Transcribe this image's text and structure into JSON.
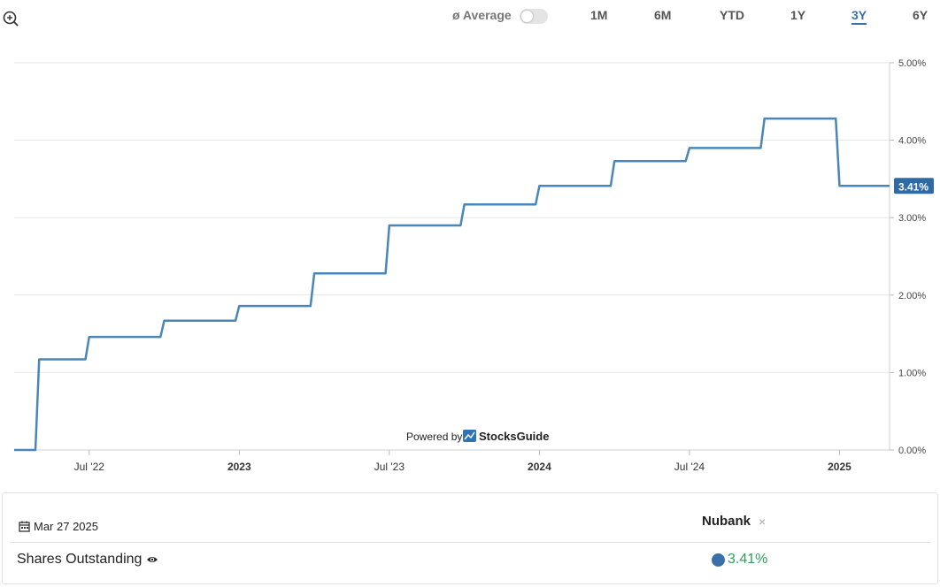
{
  "toolbar": {
    "average_label": "ø Average",
    "average_enabled": false,
    "ranges": [
      "1M",
      "6M",
      "YTD",
      "1Y",
      "3Y",
      "6Y"
    ],
    "active_range": "3Y"
  },
  "chart_data": {
    "type": "line",
    "line_style": "step",
    "color": "#4a86b8",
    "x": [
      "2022-04",
      "2022-05",
      "2022-06",
      "2022-07",
      "2022-08",
      "2022-09",
      "2022-10",
      "2022-11",
      "2022-12",
      "2023-01",
      "2023-02",
      "2023-03",
      "2023-04",
      "2023-05",
      "2023-06",
      "2023-07",
      "2023-08",
      "2023-09",
      "2023-10",
      "2023-11",
      "2023-12",
      "2024-01",
      "2024-02",
      "2024-03",
      "2024-04",
      "2024-05",
      "2024-06",
      "2024-07",
      "2024-08",
      "2024-09",
      "2024-10",
      "2024-11",
      "2024-12",
      "2025-01",
      "2025-02",
      "2025-03"
    ],
    "series": [
      {
        "values": [
          0,
          1.17,
          1.17,
          1.46,
          1.46,
          1.46,
          1.67,
          1.67,
          1.67,
          1.86,
          1.86,
          1.86,
          2.28,
          2.28,
          2.28,
          2.9,
          2.9,
          2.9,
          3.17,
          3.17,
          3.17,
          3.41,
          3.41,
          3.41,
          3.73,
          3.73,
          3.73,
          3.9,
          3.9,
          3.9,
          4.28,
          4.28,
          4.28,
          3.41,
          3.41,
          3.41
        ]
      }
    ],
    "y_ticks": [
      "0.00%",
      "1.00%",
      "2.00%",
      "3.00%",
      "4.00%",
      "5.00%"
    ],
    "ylim": [
      0,
      5
    ],
    "x_ticks": [
      {
        "label": "Jul '22",
        "at": "2022-07",
        "bold": false
      },
      {
        "label": "2023",
        "at": "2023-01",
        "bold": true
      },
      {
        "label": "Jul '23",
        "at": "2023-07",
        "bold": false
      },
      {
        "label": "2024",
        "at": "2024-01",
        "bold": true
      },
      {
        "label": "Jul '24",
        "at": "2024-07",
        "bold": false
      },
      {
        "label": "2025",
        "at": "2025-01",
        "bold": true
      }
    ],
    "last_value_label": "3.41%",
    "grid": true
  },
  "watermark": {
    "prefix": "Powered by",
    "brand": "StocksGuide"
  },
  "panel": {
    "date": "Mar 27 2025",
    "company": "Nubank",
    "close_symbol": "×",
    "metric_label": "Shares Outstanding",
    "metric_value": "3.41%",
    "value_color": "#2e9e5e",
    "dot_color": "#3a6fa8"
  }
}
